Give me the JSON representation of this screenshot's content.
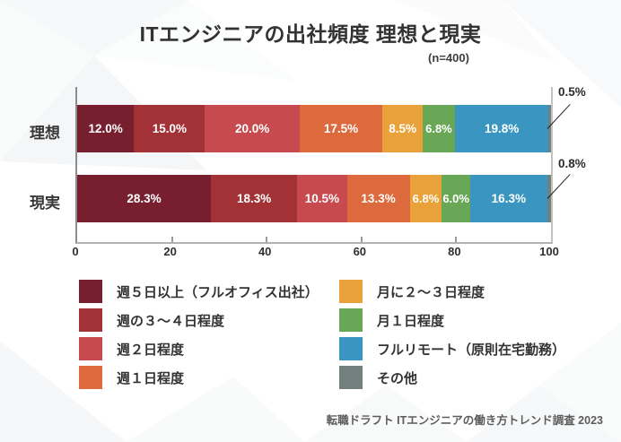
{
  "page": {
    "title": "ITエンジニアの出社頻度 理想と現実",
    "sample_size": "(n=400)",
    "source": "転職ドラフト ITエンジニアの働き方トレンド調査 2023"
  },
  "chart_data": {
    "type": "bar",
    "stacked": true,
    "orientation": "horizontal",
    "unit": "%",
    "xlim": [
      0,
      100
    ],
    "x_ticks": [
      0,
      20,
      40,
      60,
      80,
      100
    ],
    "grid": false,
    "legend_position": "bottom, two columns",
    "categories": [
      "週５日以上（フルオフィス出社）",
      "週の３〜４日程度",
      "週２日程度",
      "週１日程度",
      "月に２〜３日程度",
      "月１日程度",
      "フルリモート（原則在宅勤務）",
      "その他"
    ],
    "category_colors": [
      "#771f2e",
      "#a23236",
      "#c74b4e",
      "#dd6a3c",
      "#e9a23a",
      "#68a756",
      "#3a95c0",
      "#71807e"
    ],
    "series": [
      {
        "name": "理想",
        "values": [
          12.0,
          15.0,
          20.0,
          17.5,
          8.5,
          6.8,
          19.8,
          0.5
        ],
        "segment_labels": [
          "12.0%",
          "15.0%",
          "20.0%",
          "17.5%",
          "8.5%",
          "6.8%",
          "19.8%",
          ""
        ],
        "other_callout": "0.5%"
      },
      {
        "name": "現実",
        "values": [
          28.3,
          18.3,
          10.5,
          13.3,
          6.8,
          6.0,
          16.3,
          0.8
        ],
        "segment_labels": [
          "28.3%",
          "18.3%",
          "10.5%",
          "13.3%",
          "6.8%",
          "6.0%",
          "16.3%",
          ""
        ],
        "other_callout": "0.8%"
      }
    ]
  },
  "colors": {
    "bar_label_text": "#ffffff",
    "axis_line": "#b2b2b2",
    "title_text": "#323232",
    "background": "#ffffff"
  }
}
